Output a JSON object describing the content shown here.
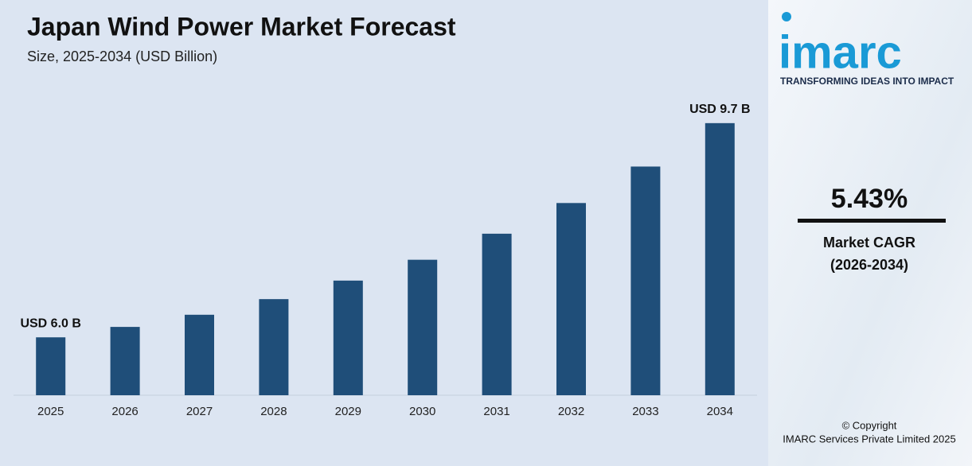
{
  "chart_data": {
    "type": "bar",
    "title": "Japan Wind Power Market Forecast",
    "subtitle": "Size, 2025-2034 (USD Billion)",
    "categories": [
      "2025",
      "2026",
      "2027",
      "2028",
      "2029",
      "2030",
      "2031",
      "2032",
      "2033",
      "2034"
    ],
    "values": [
      6.0,
      6.18,
      6.39,
      6.66,
      6.98,
      7.34,
      7.79,
      8.32,
      8.95,
      9.7
    ],
    "value_labels": [
      "USD 6.0 B",
      null,
      null,
      null,
      null,
      null,
      null,
      null,
      null,
      "USD 9.7 B"
    ],
    "color": "#1f4e79",
    "ylim": [
      5,
      10
    ]
  },
  "sidebar": {
    "logo": "imarc",
    "tagline": "TRANSFORMING IDEAS INTO IMPACT",
    "cagr": "5.43%",
    "cagr_label": "Market CAGR",
    "cagr_period": "(2026-2034)",
    "copyright": "© Copyright",
    "company": "IMARC Services Private Limited 2025"
  }
}
